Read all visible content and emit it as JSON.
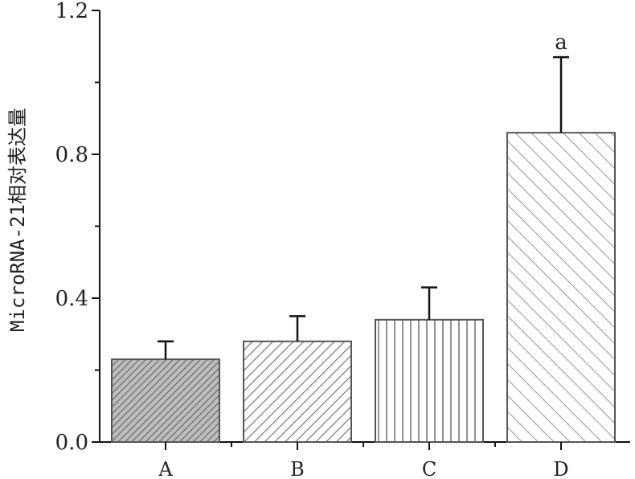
{
  "chart_data": {
    "type": "bar",
    "categories": [
      "A",
      "B",
      "C",
      "D"
    ],
    "values": [
      0.23,
      0.28,
      0.34,
      0.86
    ],
    "errors": [
      0.05,
      0.07,
      0.09,
      0.21
    ],
    "annotations": [
      "",
      "",
      "",
      "a"
    ],
    "ylabel": "MicroRNA-21相对表达量",
    "xlabel": "",
    "title": "",
    "ylim": [
      0,
      1.2
    ],
    "yticks": [
      "0.0",
      "0.4",
      "0.8",
      "1.2"
    ],
    "grid": false,
    "patterns": [
      "dense-diagonal",
      "diagonal",
      "vertical",
      "sparse-diagonal"
    ],
    "colors": {
      "bar_stroke": "#555555",
      "hatch": "#777777",
      "axis": "#111111"
    }
  }
}
